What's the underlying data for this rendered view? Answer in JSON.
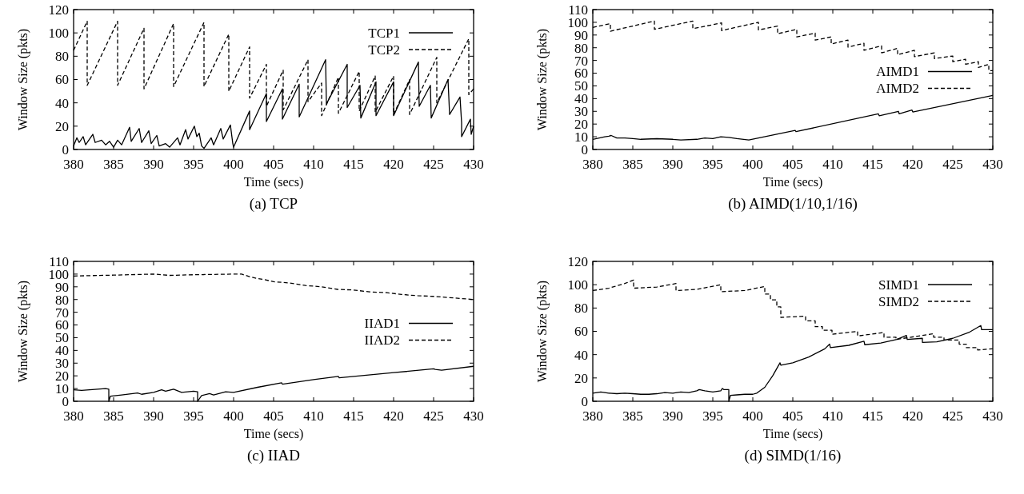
{
  "chart_data": [
    {
      "type": "line",
      "title": "(a) TCP",
      "xlabel": "Time (secs)",
      "ylabel": "Window Size (pkts)",
      "xlim": [
        380,
        430
      ],
      "xticks": [
        380,
        385,
        390,
        395,
        400,
        405,
        410,
        415,
        420,
        425,
        430
      ],
      "ylim": [
        0,
        120
      ],
      "yticks": [
        0,
        20,
        40,
        60,
        80,
        100,
        120
      ],
      "legend": "top right",
      "grid": false,
      "series": [
        {
          "name": "TCP1",
          "color": "#000000",
          "line_style": "solid",
          "x": [
            380,
            380.4,
            380.7,
            381.2,
            381.5,
            382.4,
            382.7,
            383.5,
            384,
            384.5,
            385,
            385.5,
            386,
            387,
            387.2,
            388.2,
            388.5,
            389.4,
            389.7,
            390.4,
            390.7,
            391.5,
            392,
            393,
            393.3,
            394,
            394.3,
            395.1,
            395.4,
            395.7,
            396,
            396.3,
            397.2,
            397.5,
            398.4,
            398.7,
            399.6,
            399.9,
            400,
            402,
            402,
            404.1,
            404.1,
            406.1,
            406.1,
            408.2,
            408.2,
            411.5,
            411.6,
            414.2,
            414.2,
            415.8,
            415.9,
            417.8,
            417.8,
            420,
            420,
            423.1,
            423.2,
            424.6,
            424.7,
            426.8,
            427,
            428.3,
            428.5,
            428.5,
            429.6,
            429.7,
            430
          ],
          "values": [
            3,
            10,
            6,
            11,
            4,
            13,
            6,
            8,
            4,
            7,
            2,
            8,
            4,
            19,
            7,
            18,
            6,
            16,
            5,
            12,
            3,
            5,
            2,
            10,
            4,
            17,
            9,
            20,
            11,
            14,
            3,
            1,
            10,
            4,
            18,
            9,
            21,
            5,
            2,
            33,
            17,
            48,
            24,
            52,
            26,
            56,
            28,
            77,
            39,
            73,
            36,
            55,
            27,
            58,
            29,
            58,
            29,
            75,
            37,
            55,
            27,
            60,
            30,
            45,
            23,
            11,
            26,
            13,
            20
          ]
        },
        {
          "name": "TCP2",
          "color": "#000000",
          "line_style": "dashed",
          "x": [
            380,
            381.7,
            381.7,
            385.5,
            385.5,
            388.8,
            388.8,
            392.5,
            392.5,
            396.3,
            396.3,
            399.4,
            399.4,
            402,
            402,
            404.1,
            404.1,
            406.2,
            406.2,
            409.3,
            409.3,
            411,
            411,
            413.1,
            413.1,
            415.7,
            415.7,
            417.7,
            417.7,
            420,
            420,
            422,
            422,
            425.4,
            425.4,
            429.4,
            429.4,
            430
          ],
          "values": [
            85,
            110,
            55,
            110,
            55,
            104,
            52,
            108,
            54,
            109,
            54,
            99,
            50,
            88,
            44,
            73,
            37,
            68,
            34,
            77,
            41,
            57,
            29,
            62,
            31,
            67,
            33,
            63,
            32,
            63,
            30,
            60,
            30,
            79,
            40,
            95,
            47,
            52
          ]
        }
      ]
    },
    {
      "type": "line",
      "title": "(b) AIMD(1/10,1/16)",
      "xlabel": "Time (secs)",
      "ylabel": "Window Size (pkts)",
      "xlim": [
        380,
        430
      ],
      "xticks": [
        380,
        385,
        390,
        395,
        400,
        405,
        410,
        415,
        420,
        425,
        430
      ],
      "ylim": [
        0,
        110
      ],
      "yticks": [
        0,
        10,
        20,
        30,
        40,
        50,
        60,
        70,
        80,
        90,
        100,
        110
      ],
      "legend": "right",
      "grid": false,
      "series": [
        {
          "name": "AIMD1",
          "color": "#000000",
          "line_style": "solid",
          "x": [
            380,
            381.5,
            382,
            382.3,
            383,
            384,
            385,
            386,
            388,
            390,
            391,
            393,
            394,
            395,
            396,
            397,
            398,
            399.5,
            405.3,
            405.4,
            415.7,
            415.8,
            418.2,
            418.3,
            419.9,
            420,
            430
          ],
          "values": [
            8,
            10,
            10.5,
            11,
            9,
            9,
            8.5,
            8,
            8.5,
            8,
            7.5,
            8,
            9,
            8.5,
            10,
            9.5,
            8.5,
            7.5,
            15,
            14,
            28,
            26.5,
            30,
            28,
            31,
            29.5,
            42.5
          ]
        },
        {
          "name": "AIMD2",
          "color": "#000000",
          "line_style": "dashed",
          "x": [
            380,
            382.2,
            382.2,
            387.7,
            387.7,
            392.5,
            392.5,
            396.1,
            396.1,
            400.7,
            400.7,
            403.1,
            403.1,
            405.5,
            405.5,
            407.8,
            407.8,
            409.8,
            409.8,
            411.9,
            411.9,
            413.9,
            413.9,
            416.1,
            416.1,
            418.1,
            418.1,
            420.2,
            420.2,
            422.7,
            422.7,
            425,
            425,
            426.6,
            426.6,
            428.2,
            428.2,
            429.5,
            429.5,
            430
          ],
          "values": [
            96,
            99,
            93,
            101,
            94.5,
            101,
            95,
            99.5,
            93.5,
            100,
            94,
            97,
            91,
            94.5,
            88.5,
            91.5,
            86,
            88.5,
            83,
            86,
            80.5,
            83.5,
            78,
            81.5,
            76,
            79.5,
            74.5,
            78,
            73,
            76,
            71.5,
            73.5,
            69,
            71,
            67,
            69,
            64.5,
            67,
            62,
            62
          ]
        }
      ]
    },
    {
      "type": "line",
      "title": "(c) IIAD",
      "xlabel": "Time (secs)",
      "ylabel": "Window Size (pkts)",
      "xlim": [
        380,
        430
      ],
      "xticks": [
        380,
        385,
        390,
        395,
        400,
        405,
        410,
        415,
        420,
        425,
        430
      ],
      "ylim": [
        0,
        110
      ],
      "yticks": [
        0,
        10,
        20,
        30,
        40,
        50,
        60,
        70,
        80,
        90,
        100,
        110
      ],
      "legend": "right",
      "grid": false,
      "series": [
        {
          "name": "IIAD1",
          "color": "#000000",
          "line_style": "solid",
          "x": [
            380,
            381,
            383,
            384,
            384.4,
            384.4,
            384.6,
            386,
            388,
            388.5,
            390,
            391,
            391.5,
            392.5,
            393.5,
            395,
            395.5,
            395.5,
            396,
            397,
            397.5,
            399,
            400,
            403,
            406,
            406.1,
            410,
            413.1,
            413.2,
            420,
            425,
            425.2,
            426,
            430
          ],
          "values": [
            9,
            8.5,
            9.5,
            10,
            9.5,
            0,
            4,
            5,
            6.5,
            5.5,
            7,
            9,
            8,
            9.5,
            7,
            8,
            7.5,
            0,
            4.5,
            6,
            5,
            7.5,
            7,
            11,
            14.5,
            13.5,
            17,
            19.5,
            18.5,
            22.5,
            25.5,
            25,
            24.5,
            27.5
          ]
        },
        {
          "name": "IIAD2",
          "color": "#000000",
          "line_style": "dashed",
          "x": [
            380,
            385,
            390,
            392,
            395,
            400,
            401,
            402,
            403,
            404,
            405,
            407,
            409,
            411,
            413,
            415,
            417,
            419,
            421,
            423,
            425,
            427,
            430
          ],
          "values": [
            98.5,
            99.2,
            100,
            99,
            99.5,
            100,
            100,
            98,
            96.5,
            95.5,
            94,
            93,
            91,
            90,
            88,
            87.5,
            86,
            85.5,
            84,
            83,
            82.5,
            81.5,
            80
          ]
        }
      ]
    },
    {
      "type": "line",
      "title": "(d) SIMD(1/16)",
      "xlabel": "Time (secs)",
      "ylabel": "Window Size (pkts)",
      "xlim": [
        380,
        430
      ],
      "xticks": [
        380,
        385,
        390,
        395,
        400,
        405,
        410,
        415,
        420,
        425,
        430
      ],
      "ylim": [
        0,
        120
      ],
      "yticks": [
        0,
        20,
        40,
        60,
        80,
        100,
        120
      ],
      "legend": "top right",
      "grid": false,
      "series": [
        {
          "name": "SIMD1",
          "color": "#000000",
          "line_style": "solid",
          "x": [
            380,
            381,
            382,
            383,
            384,
            385,
            386,
            387,
            388,
            389,
            390,
            391,
            392,
            393,
            393.3,
            394,
            395,
            396,
            396.2,
            396.4,
            397,
            397,
            397.2,
            398,
            399,
            400,
            400.5,
            401.5,
            402.5,
            403.4,
            403.5,
            405,
            407,
            409,
            409.6,
            409.7,
            412,
            413.9,
            414,
            416,
            418,
            419.2,
            419.3,
            421.2,
            421.2,
            423,
            425,
            427,
            428.5,
            428.6,
            430
          ],
          "values": [
            7,
            8,
            7,
            6.5,
            7,
            6.5,
            6,
            6,
            6.5,
            7.5,
            7,
            8,
            7.5,
            9,
            10,
            9,
            8,
            9,
            11,
            10,
            10,
            0,
            5,
            5.5,
            6,
            6,
            7,
            12,
            22,
            33,
            31,
            33,
            38,
            45,
            49,
            46,
            48,
            51.5,
            48.5,
            50,
            53,
            56.5,
            53,
            54,
            50.5,
            51,
            54,
            59,
            65,
            61.5,
            61.5
          ]
        },
        {
          "name": "SIMD2",
          "color": "#000000",
          "line_style": "dashed",
          "x": [
            380,
            382,
            384,
            385.1,
            385.1,
            388,
            390.4,
            390.4,
            393,
            396,
            396,
            399,
            401.5,
            401.5,
            402.2,
            402.2,
            403,
            403,
            403.5,
            403.5,
            406.6,
            406.6,
            407.8,
            407.8,
            408.7,
            408.7,
            409.9,
            409.9,
            413.1,
            413.1,
            416.4,
            416.4,
            417.9,
            417.9,
            422.6,
            422.6,
            423.9,
            423.9,
            425.8,
            425.8,
            426.7,
            426.7,
            428.1,
            428.1,
            430
          ],
          "values": [
            95,
            97,
            101,
            104,
            97,
            98,
            101,
            95,
            96,
            100,
            94,
            95,
            98.5,
            92,
            92,
            87,
            87,
            81,
            81,
            72,
            73,
            69,
            69,
            64,
            64,
            61,
            61,
            57.5,
            60,
            56,
            59,
            55,
            55,
            53,
            58,
            55,
            55,
            52.5,
            52.5,
            49,
            49,
            46,
            46,
            44,
            45
          ]
        }
      ]
    }
  ]
}
